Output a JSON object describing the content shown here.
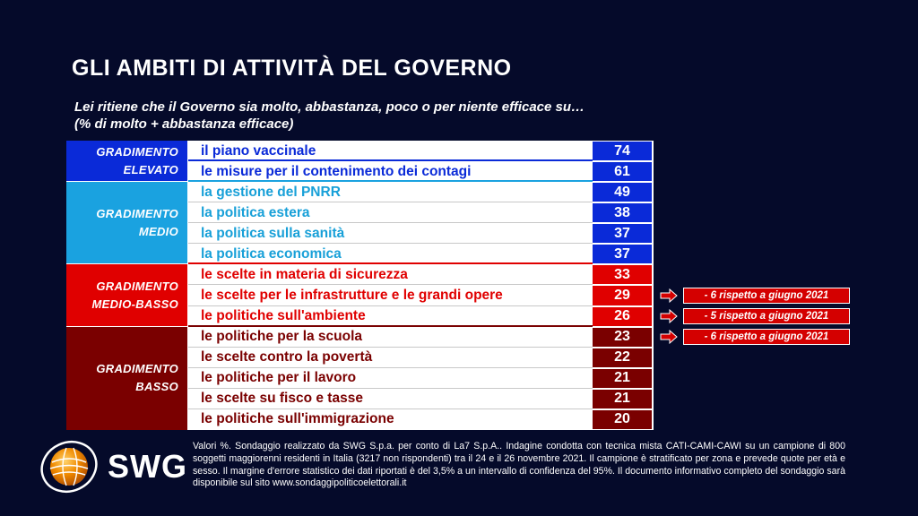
{
  "title": "GLI AMBITI DI ATTIVITÀ DEL GOVERNO",
  "subtitle_line1": "Lei ritiene che il Governo sia molto, abbastanza, poco o per niente efficace su…",
  "subtitle_line2": "(% di molto + abbastanza efficace)",
  "chart_data": {
    "type": "table",
    "groups": [
      {
        "label_lines": [
          "GRADIMENTO",
          "ELEVATO"
        ],
        "bg": "#0a2ad8",
        "value_bg": "#0a2ad8",
        "text_color": "#0a2ad8",
        "rows": 2
      },
      {
        "label_lines": [
          "GRADIMENTO",
          "MEDIO"
        ],
        "bg": "#1aa2e0",
        "value_bg": "#0a2ad8",
        "text_color": "#18a0d8",
        "rows": 4
      },
      {
        "label_lines": [
          "GRADIMENTO",
          "MEDIO-BASSO"
        ],
        "bg": "#e00000",
        "value_bg": "#e00000",
        "text_color": "#e00000",
        "rows": 3
      },
      {
        "label_lines": [
          "GRADIMENTO",
          "BASSO"
        ],
        "bg": "#7a0000",
        "value_bg": "#7a0000",
        "text_color": "#7a0000",
        "rows": 5
      }
    ],
    "rows": [
      {
        "label": "il piano vaccinale",
        "value": 74,
        "group": 0
      },
      {
        "label": "le misure per il contenimento dei contagi",
        "value": 61,
        "group": 0
      },
      {
        "label": "la gestione del PNRR",
        "value": 49,
        "group": 1
      },
      {
        "label": "la politica estera",
        "value": 38,
        "group": 1
      },
      {
        "label": "la politica sulla sanità",
        "value": 37,
        "group": 1
      },
      {
        "label": "la politica economica",
        "value": 37,
        "group": 1
      },
      {
        "label": "le scelte in materia di sicurezza",
        "value": 33,
        "group": 2
      },
      {
        "label": "le scelte per le infrastrutture e le grandi opere",
        "value": 29,
        "group": 2
      },
      {
        "label": "le politiche sull'ambiente",
        "value": 26,
        "group": 2
      },
      {
        "label": "le politiche per la scuola",
        "value": 23,
        "group": 3
      },
      {
        "label": "le scelte contro la povertà",
        "value": 22,
        "group": 3
      },
      {
        "label": "le politiche per il lavoro",
        "value": 21,
        "group": 3
      },
      {
        "label": "le scelte su fisco e tasse",
        "value": 21,
        "group": 3
      },
      {
        "label": "le politiche sull'immigrazione",
        "value": 20,
        "group": 3
      }
    ],
    "annotations": [
      {
        "row": 7,
        "text": "- 6 rispetto a giugno 2021"
      },
      {
        "row": 8,
        "text": "- 5 rispetto a giugno 2021"
      },
      {
        "row": 9,
        "text": "- 6 rispetto a giugno 2021"
      }
    ]
  },
  "logo": {
    "text": "SWG",
    "icon": "swg-globe-icon",
    "color": "#f08a00"
  },
  "footnote": "Valori %. Sondaggio realizzato da SWG S.p.a. per conto di La7 S.p.A.. Indagine condotta con tecnica mista CATI-CAMI-CAWI su un campione di 800 soggetti maggiorenni residenti in Italia (3217 non rispondenti) tra il 24 e il 26 novembre 2021. Il campione è stratificato per zona e prevede quote per età e sesso. Il margine d'errore statistico dei dati riportati è del 3,5% a un intervallo di confidenza del 95%. Il documento informativo completo del sondaggio sarà disponibile sul sito www.sondaggipoliticoelettorali.it"
}
